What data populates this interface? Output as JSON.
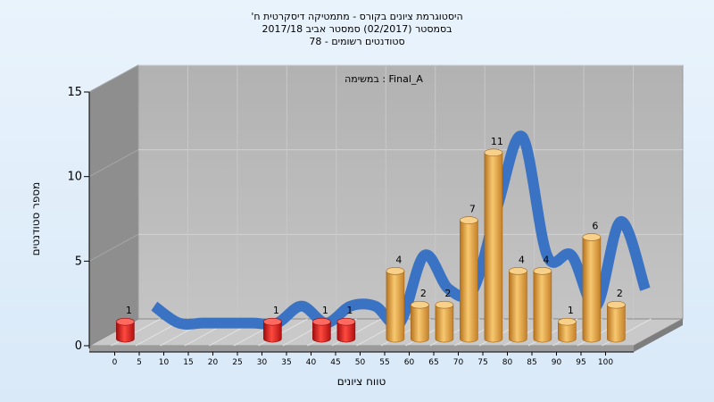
{
  "chart_data": {
    "type": "bar",
    "title_lines": [
      "היסטוגרמת ציונים בקורס - מתמטיקה דיסקרטית ח'",
      "בסמסטר  (02/2017)  סמסטר אביב 2017/18",
      "סטודנטים רשומים - 78"
    ],
    "annotation": "במשימה : Final_A",
    "xlabel": "טווח ציונים",
    "ylabel": "מספר סטודנטים",
    "categories": [
      "0",
      "5",
      "10",
      "15",
      "20",
      "25",
      "30",
      "35",
      "40",
      "45",
      "50",
      "55",
      "60",
      "65",
      "70",
      "75",
      "80",
      "85",
      "90",
      "95",
      "100"
    ],
    "values": [
      1,
      0,
      0,
      0,
      0,
      0,
      1,
      0,
      1,
      1,
      0,
      4,
      2,
      2,
      7,
      11,
      4,
      4,
      1,
      6,
      2
    ],
    "failing_below": 55,
    "yticks": [
      0,
      5,
      10,
      15
    ],
    "ylim": [
      0,
      15
    ],
    "colors": {
      "failing": "#e0201e",
      "passing": "#e8a53c",
      "ribbon_blue": "#3a72c4",
      "ribbon_gray": "#6d6d6d",
      "back_wall": "#b7b7b7",
      "side_wall": "#8e8e8e",
      "floor": "#c6c6c6"
    }
  }
}
